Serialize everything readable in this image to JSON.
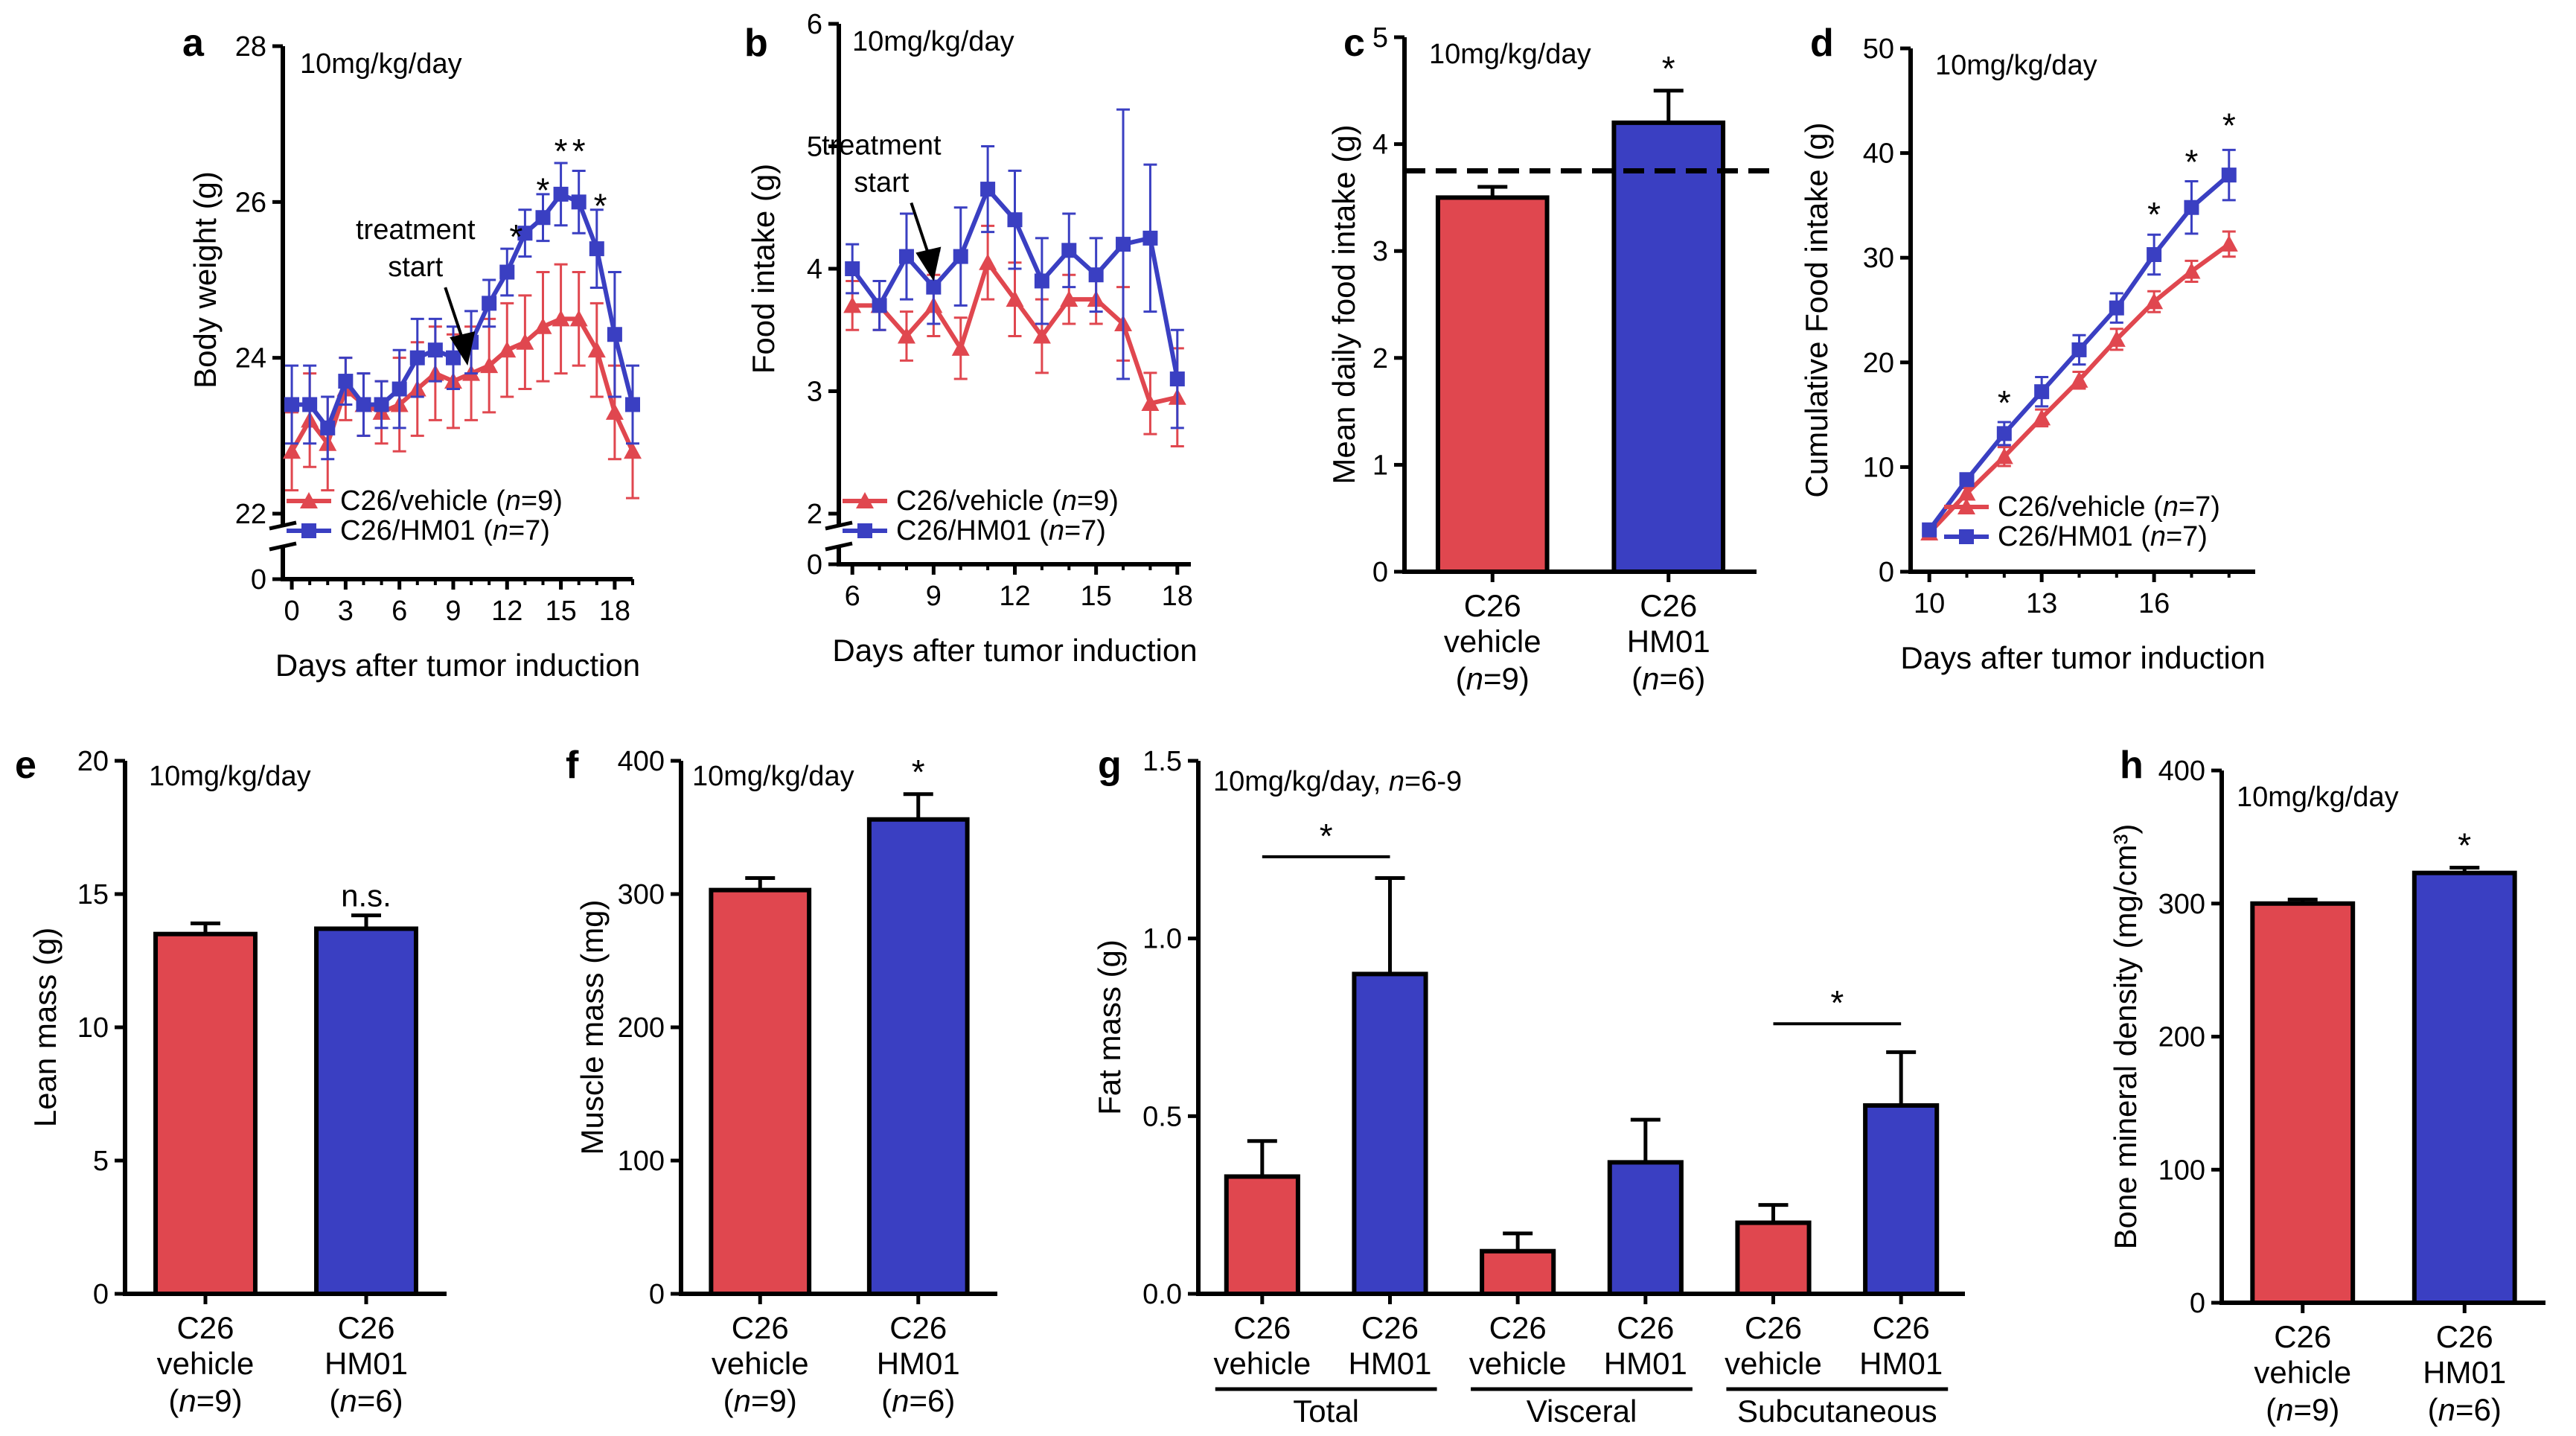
{
  "colors": {
    "vehicle": "#e0474f",
    "hm01": "#3a3fc2",
    "axis": "#000000"
  },
  "chart_data": [
    {
      "panel": "a",
      "type": "line",
      "note": "10mg/kg/day",
      "xlabel": "Days after tumor induction",
      "ylabel": "Body weight (g)",
      "xlim": [
        -0.5,
        19
      ],
      "xticks": [
        "0",
        "3",
        "6",
        "9",
        "12",
        "15",
        "18"
      ],
      "ylim": [
        22,
        28
      ],
      "yticks": [
        "22",
        "24",
        "26",
        "28"
      ],
      "ybreak_label": "0",
      "annotation": [
        "treatment",
        "start"
      ],
      "annotation_x": 9.8,
      "annotation_y": 23.9,
      "legend": [
        {
          "prefix": "C26/vehicle (",
          "n": "n",
          "suffix": "=9)"
        },
        {
          "prefix": "C26/HM01 (",
          "n": "n",
          "suffix": "=7)"
        }
      ],
      "stars": [
        {
          "x": 12.5,
          "y": 25.4,
          "label": "*"
        },
        {
          "x": 14.0,
          "y": 26.0,
          "label": "*"
        },
        {
          "x": 15.0,
          "y": 26.5,
          "label": "*"
        },
        {
          "x": 16.0,
          "y": 26.5,
          "label": "*"
        },
        {
          "x": 17.2,
          "y": 25.8,
          "label": "*"
        }
      ],
      "series": [
        {
          "name": "C26/vehicle",
          "marker": "triangle",
          "x": [
            0,
            1,
            2,
            3,
            4,
            5,
            6,
            7,
            8,
            9,
            10,
            11,
            12,
            13,
            14,
            15,
            16,
            17,
            18,
            19
          ],
          "y": [
            22.8,
            23.2,
            22.9,
            23.6,
            23.4,
            23.3,
            23.4,
            23.6,
            23.8,
            23.7,
            23.8,
            23.9,
            24.1,
            24.2,
            24.4,
            24.5,
            24.5,
            24.1,
            23.3,
            22.8
          ],
          "err": [
            0.5,
            0.6,
            0.6,
            0.4,
            0.4,
            0.4,
            0.6,
            0.6,
            0.6,
            0.6,
            0.6,
            0.6,
            0.6,
            0.6,
            0.7,
            0.7,
            0.6,
            0.6,
            0.6,
            0.6
          ]
        },
        {
          "name": "C26/HM01",
          "marker": "square",
          "x": [
            0,
            1,
            2,
            3,
            4,
            5,
            6,
            7,
            8,
            9,
            10,
            11,
            12,
            13,
            14,
            15,
            16,
            17,
            18,
            19
          ],
          "y": [
            23.4,
            23.4,
            23.1,
            23.7,
            23.4,
            23.4,
            23.6,
            24.0,
            24.1,
            24.0,
            24.2,
            24.7,
            25.1,
            25.6,
            25.8,
            26.1,
            26.0,
            25.4,
            24.3,
            23.4
          ],
          "err": [
            0.5,
            0.5,
            0.4,
            0.3,
            0.4,
            0.3,
            0.5,
            0.5,
            0.4,
            0.4,
            0.4,
            0.3,
            0.3,
            0.3,
            0.3,
            0.4,
            0.4,
            0.5,
            0.8,
            0.5
          ]
        }
      ]
    },
    {
      "panel": "b",
      "type": "line",
      "note": "10mg/kg/day",
      "xlabel": "Days after tumor induction",
      "ylabel": "Food intake (g)",
      "xlim": [
        5.5,
        18.5
      ],
      "xticks": [
        "6",
        "9",
        "12",
        "15",
        "18"
      ],
      "ylim": [
        2,
        6
      ],
      "yticks": [
        "2",
        "3",
        "4",
        "5",
        "6"
      ],
      "ybreak_label": "0",
      "annotation": [
        "treatment",
        "start"
      ],
      "annotation_x": 9,
      "annotation_y": 3.9,
      "legend": [
        {
          "prefix": "C26/vehicle (",
          "n": "n",
          "suffix": "=9)"
        },
        {
          "prefix": "C26/HM01 (",
          "n": "n",
          "suffix": "=7)"
        }
      ],
      "stars": [],
      "series": [
        {
          "name": "C26/vehicle",
          "marker": "triangle",
          "x": [
            6,
            7,
            8,
            9,
            10,
            11,
            12,
            13,
            14,
            15,
            16,
            17,
            18
          ],
          "y": [
            3.7,
            3.7,
            3.45,
            3.7,
            3.35,
            4.05,
            3.75,
            3.45,
            3.75,
            3.75,
            3.55,
            2.9,
            2.95
          ],
          "err": [
            0.2,
            0.2,
            0.2,
            0.25,
            0.25,
            0.3,
            0.3,
            0.3,
            0.2,
            0.2,
            0.3,
            0.25,
            0.4
          ]
        },
        {
          "name": "C26/HM01",
          "marker": "square",
          "x": [
            6,
            7,
            8,
            9,
            10,
            11,
            12,
            13,
            14,
            15,
            16,
            17,
            18
          ],
          "y": [
            4.0,
            3.7,
            4.1,
            3.85,
            4.1,
            4.65,
            4.4,
            3.9,
            4.15,
            3.95,
            4.2,
            4.25,
            3.1
          ],
          "err": [
            0.2,
            0.2,
            0.35,
            0.3,
            0.4,
            0.35,
            0.4,
            0.35,
            0.3,
            0.3,
            1.1,
            0.6,
            0.4
          ]
        }
      ]
    },
    {
      "panel": "c",
      "type": "bar",
      "note": "10mg/kg/day",
      "ylabel": "Mean daily food intake (g)",
      "ylim": [
        0,
        5
      ],
      "yticks": [
        "0",
        "1",
        "2",
        "3",
        "4",
        "5"
      ],
      "reference_line": 3.75,
      "categories": [
        {
          "line1": "C26",
          "line2": "vehicle",
          "pre": "(",
          "n": "n",
          "post": "=9)"
        },
        {
          "line1": "C26",
          "line2": "HM01",
          "pre": "(",
          "n": "n",
          "post": "=6)"
        }
      ],
      "values": [
        3.5,
        4.2
      ],
      "errors": [
        0.1,
        0.3
      ],
      "stars": [
        {
          "bar": 1,
          "label": "*"
        }
      ],
      "groups": [],
      "brackets": []
    },
    {
      "panel": "d",
      "type": "line",
      "note": "10mg/kg/day",
      "xlabel": "Days after tumor induction",
      "ylabel": "Cumulative Food intake (g)",
      "xlim": [
        9.5,
        18.7
      ],
      "xticks": [
        "10",
        "13",
        "16"
      ],
      "xtick_values": [
        10,
        13,
        16
      ],
      "ylim": [
        0,
        50
      ],
      "yticks": [
        "0",
        "10",
        "20",
        "30",
        "40",
        "50"
      ],
      "legend": [
        {
          "prefix": "C26/vehicle (",
          "n": "n",
          "suffix": "=7)"
        },
        {
          "prefix": "C26/HM01 (",
          "n": "n",
          "suffix": "=7)"
        }
      ],
      "stars": [
        {
          "x": 12,
          "y": 15.0,
          "label": "*"
        },
        {
          "x": 16,
          "y": 33.0,
          "label": "*"
        },
        {
          "x": 17,
          "y": 38.0,
          "label": "*"
        },
        {
          "x": 18,
          "y": 41.5,
          "label": "*"
        }
      ],
      "series": [
        {
          "name": "C26/vehicle",
          "marker": "triangle",
          "x": [
            10,
            11,
            12,
            13,
            14,
            15,
            16,
            17,
            18
          ],
          "y": [
            3.7,
            7.5,
            11.0,
            14.7,
            18.3,
            22.2,
            25.8,
            28.7,
            31.3
          ],
          "err": [
            0.4,
            0.5,
            0.9,
            0.8,
            0.8,
            1.0,
            1.0,
            1.0,
            1.2
          ]
        },
        {
          "name": "C26/HM01",
          "marker": "square",
          "x": [
            10,
            11,
            12,
            13,
            14,
            15,
            16,
            17,
            18
          ],
          "y": [
            4.0,
            8.8,
            13.2,
            17.2,
            21.2,
            25.2,
            30.3,
            34.8,
            37.9
          ],
          "err": [
            0.4,
            0.5,
            1.1,
            1.4,
            1.4,
            1.4,
            1.9,
            2.5,
            2.4
          ]
        }
      ]
    },
    {
      "panel": "e",
      "type": "bar",
      "note": "10mg/kg/day",
      "ylabel": "Lean mass (g)",
      "ylim": [
        0,
        20
      ],
      "yticks": [
        "0",
        "5",
        "10",
        "15",
        "20"
      ],
      "categories": [
        {
          "line1": "C26",
          "line2": "vehicle",
          "pre": "(",
          "n": "n",
          "post": "=9)"
        },
        {
          "line1": "C26",
          "line2": "HM01",
          "pre": "(",
          "n": "n",
          "post": "=6)"
        }
      ],
      "values": [
        13.5,
        13.7
      ],
      "errors": [
        0.4,
        0.5
      ],
      "stars": [
        {
          "bar": 1,
          "label": "n.s."
        }
      ],
      "groups": [],
      "brackets": []
    },
    {
      "panel": "f",
      "type": "bar",
      "note": "10mg/kg/day",
      "ylabel": "Muscle mass (mg)",
      "ylim": [
        0,
        400
      ],
      "yticks": [
        "0",
        "100",
        "200",
        "300",
        "400"
      ],
      "categories": [
        {
          "line1": "C26",
          "line2": "vehicle",
          "pre": "(",
          "n": "n",
          "post": "=9)"
        },
        {
          "line1": "C26",
          "line2": "HM01",
          "pre": "(",
          "n": "n",
          "post": "=6)"
        }
      ],
      "values": [
        303,
        356
      ],
      "errors": [
        9,
        19
      ],
      "stars": [
        {
          "bar": 1,
          "label": "*"
        }
      ],
      "groups": [],
      "brackets": []
    },
    {
      "panel": "g",
      "type": "bar",
      "note": "10mg/kg/day, ",
      "note_n": "n",
      "note_suffix": "=6-9",
      "ylabel": "Fat mass (g)",
      "ylim": [
        0,
        1.5
      ],
      "yticks": [
        "0.0",
        "0.5",
        "1.0",
        "1.5"
      ],
      "categories": [
        {
          "line1": "C26",
          "line2": "vehicle"
        },
        {
          "line1": "C26",
          "line2": "HM01"
        },
        {
          "line1": "C26",
          "line2": "vehicle"
        },
        {
          "line1": "C26",
          "line2": "HM01"
        },
        {
          "line1": "C26",
          "line2": "vehicle"
        },
        {
          "line1": "C26",
          "line2": "HM01"
        }
      ],
      "values": [
        0.33,
        0.9,
        0.12,
        0.37,
        0.2,
        0.53
      ],
      "errors": [
        0.1,
        0.27,
        0.05,
        0.12,
        0.05,
        0.15
      ],
      "groups": [
        "Total",
        "Visceral",
        "Subcutaneous"
      ],
      "brackets": [
        {
          "from": 0,
          "to": 1,
          "y": 1.23,
          "label": "*"
        },
        {
          "from": 4,
          "to": 5,
          "y": 0.76,
          "label": "*"
        }
      ],
      "stars": []
    },
    {
      "panel": "h",
      "type": "bar",
      "note": "10mg/kg/day",
      "ylabel": "Bone mineral density (mg/cm³)",
      "ylim": [
        0,
        400
      ],
      "yticks": [
        "0",
        "100",
        "200",
        "300",
        "400"
      ],
      "categories": [
        {
          "line1": "C26",
          "line2": "vehicle",
          "pre": "(",
          "n": "n",
          "post": "=9)"
        },
        {
          "line1": "C26",
          "line2": "HM01",
          "pre": "(",
          "n": "n",
          "post": "=6)"
        }
      ],
      "values": [
        300,
        323
      ],
      "errors": [
        3,
        4
      ],
      "stars": [
        {
          "bar": 1,
          "label": "*"
        }
      ],
      "groups": [],
      "brackets": []
    }
  ]
}
